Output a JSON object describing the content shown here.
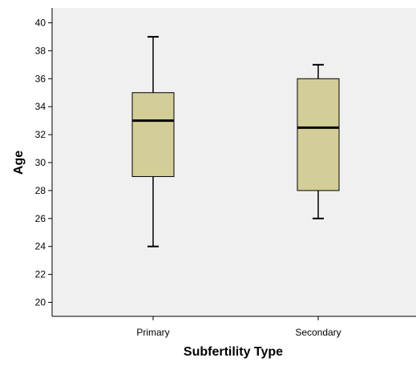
{
  "chart_data": {
    "type": "box",
    "xlabel": "Subfertility Type",
    "ylabel": "Age",
    "ylim": [
      19,
      41
    ],
    "yticks": [
      20,
      22,
      24,
      26,
      28,
      30,
      32,
      34,
      36,
      38,
      40
    ],
    "categories": [
      "Primary",
      "Secondary"
    ],
    "boxes": [
      {
        "category": "Primary",
        "min": 24,
        "q1": 29,
        "median": 33,
        "q3": 35,
        "max": 39
      },
      {
        "category": "Secondary",
        "min": 26,
        "q1": 28,
        "median": 32.5,
        "q3": 36,
        "max": 37
      }
    ],
    "grid": false,
    "colors": {
      "plot_background": "#f0f0f0",
      "box_fill": "#d3ce97",
      "stroke": "#000000"
    }
  }
}
